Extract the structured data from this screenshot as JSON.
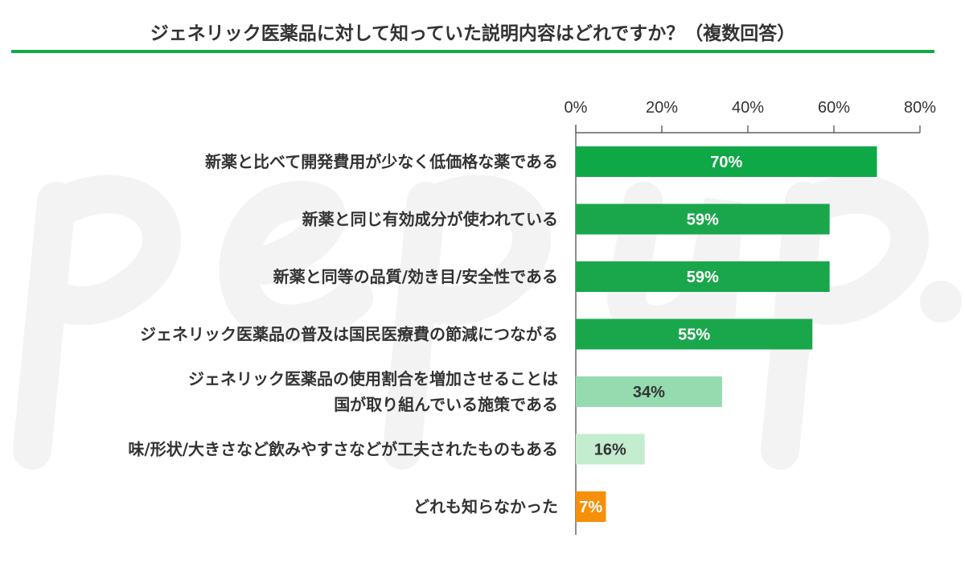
{
  "watermark": "pepup.",
  "chart_data": {
    "type": "bar",
    "orientation": "horizontal",
    "title": "ジェネリック医薬品に対して知っていた説明内容はどれですか？（複数回答）",
    "xlabel": "",
    "ylabel": "",
    "xlim": [
      0,
      80
    ],
    "ticks": [
      0,
      20,
      40,
      60,
      80
    ],
    "tick_labels": [
      "0%",
      "20%",
      "40%",
      "60%",
      "80%"
    ],
    "grid": false,
    "categories": [
      [
        "新薬と比べて開発費用が少なく低価格な薬である"
      ],
      [
        "新薬と同じ有効成分が使われている"
      ],
      [
        "新薬と同等の品質/効き目/安全性である"
      ],
      [
        "ジェネリック医薬品の普及は国民医療費の節減につながる"
      ],
      [
        "ジェネリック医薬品の使用割合を増加させることは",
        "国が取り組んでいる施策である"
      ],
      [
        "味/形状/大きさなど飲みやすさなどが工夫されたものもある"
      ],
      [
        "どれも知らなかった"
      ]
    ],
    "values": [
      70,
      59,
      59,
      55,
      34,
      16,
      7
    ],
    "value_labels": [
      "70%",
      "59%",
      "59%",
      "55%",
      "34%",
      "16%",
      "7%"
    ],
    "colors": [
      "#0fa847",
      "#1aa74c",
      "#1aa74c",
      "#1aa74c",
      "#95dbb0",
      "#c4eccf",
      "#f5900a"
    ],
    "label_colors": [
      "#ffffff",
      "#ffffff",
      "#ffffff",
      "#ffffff",
      "#333333",
      "#333333",
      "#ffffff"
    ]
  }
}
